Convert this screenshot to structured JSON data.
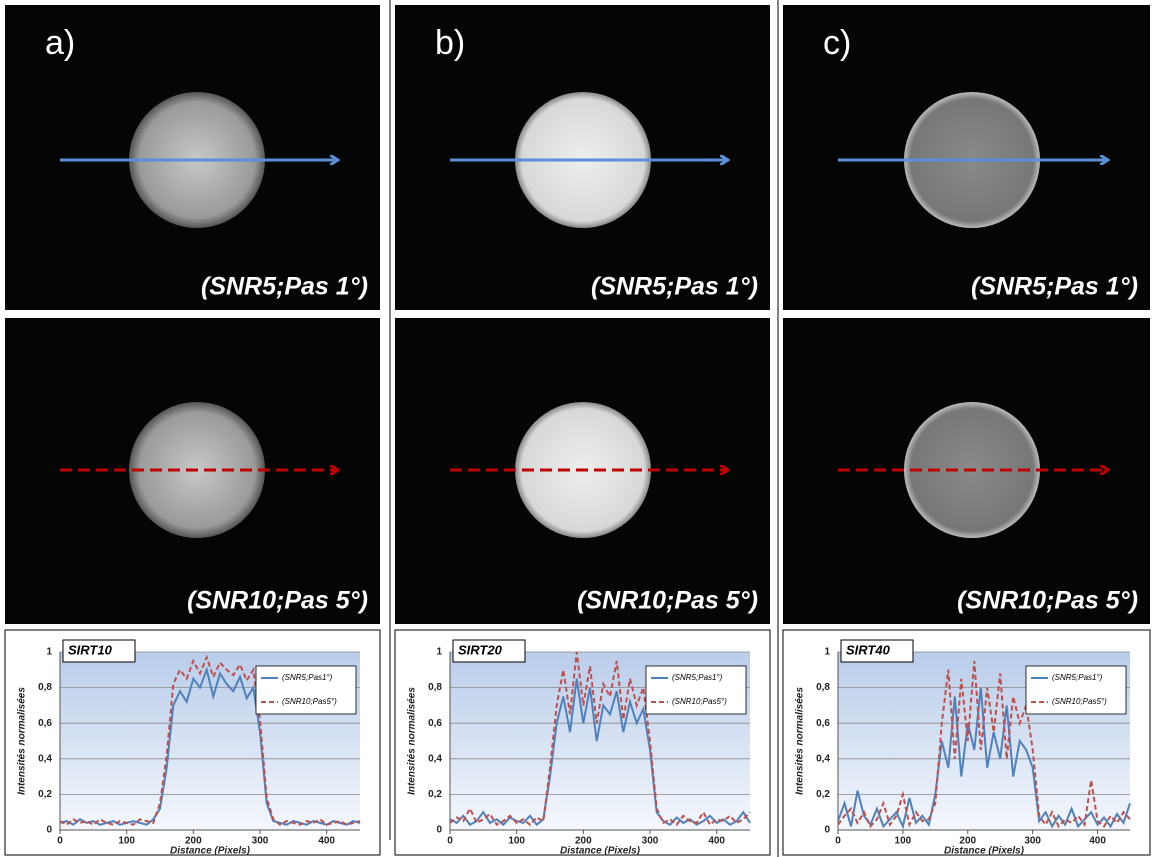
{
  "panels": [
    {
      "label": "a)",
      "captions": [
        "(SNR5;Pas 1°)",
        "(SNR10;Pas 5°)"
      ]
    },
    {
      "label": "b)",
      "captions": [
        "(SNR5;Pas 1°)",
        "(SNR10;Pas 5°)"
      ]
    },
    {
      "label": "c)",
      "captions": [
        "(SNR5;Pas 1°)",
        "(SNR10;Pas 5°)"
      ]
    }
  ],
  "chart_data": [
    {
      "type": "line",
      "title": "SIRT10",
      "xlabel": "Distance (Pixels)",
      "ylabel": "Intensités normalisées",
      "x": [
        0,
        10,
        20,
        30,
        40,
        50,
        60,
        70,
        80,
        90,
        100,
        110,
        120,
        130,
        140,
        150,
        160,
        170,
        180,
        190,
        200,
        210,
        220,
        230,
        240,
        250,
        260,
        270,
        280,
        290,
        300,
        310,
        320,
        330,
        340,
        350,
        360,
        370,
        380,
        390,
        400,
        410,
        420,
        430,
        440,
        450
      ],
      "xlim": [
        0,
        450
      ],
      "xticks": [
        0,
        100,
        200,
        300,
        400
      ],
      "ylim": [
        0,
        1
      ],
      "yticks": [
        0,
        {
          "value": 0.2,
          "label": "0,2"
        },
        {
          "value": 0.4,
          "label": "0,4"
        },
        {
          "value": 0.6,
          "label": "0,6"
        },
        {
          "value": 0.8,
          "label": "0,8"
        },
        1
      ],
      "grid": true,
      "legend": "top-right",
      "series": [
        {
          "name": "(SNR5;Pas1°)",
          "color": "#4f81bd",
          "style": "solid",
          "values": [
            0.04,
            0.05,
            0.03,
            0.06,
            0.04,
            0.05,
            0.03,
            0.04,
            0.05,
            0.03,
            0.04,
            0.05,
            0.04,
            0.03,
            0.06,
            0.12,
            0.35,
            0.7,
            0.78,
            0.72,
            0.85,
            0.8,
            0.9,
            0.75,
            0.88,
            0.82,
            0.78,
            0.86,
            0.74,
            0.8,
            0.55,
            0.15,
            0.05,
            0.04,
            0.03,
            0.05,
            0.04,
            0.03,
            0.05,
            0.04,
            0.03,
            0.05,
            0.04,
            0.03,
            0.05,
            0.04
          ]
        },
        {
          "name": "(SNR10;Pas5°)",
          "color": "#c0504d",
          "style": "dashed",
          "values": [
            0.05,
            0.03,
            0.06,
            0.04,
            0.05,
            0.03,
            0.06,
            0.04,
            0.03,
            0.05,
            0.04,
            0.03,
            0.06,
            0.05,
            0.04,
            0.15,
            0.42,
            0.82,
            0.9,
            0.85,
            0.95,
            0.88,
            0.97,
            0.86,
            0.94,
            0.9,
            0.87,
            0.93,
            0.84,
            0.9,
            0.62,
            0.18,
            0.06,
            0.03,
            0.05,
            0.04,
            0.03,
            0.05,
            0.04,
            0.06,
            0.03,
            0.04,
            0.05,
            0.03,
            0.04,
            0.05
          ]
        }
      ]
    },
    {
      "type": "line",
      "title": "SIRT20",
      "xlabel": "Distance (Pixels)",
      "ylabel": "Intensités normalisées",
      "x": [
        0,
        10,
        20,
        30,
        40,
        50,
        60,
        70,
        80,
        90,
        100,
        110,
        120,
        130,
        140,
        150,
        160,
        170,
        180,
        190,
        200,
        210,
        220,
        230,
        240,
        250,
        260,
        270,
        280,
        290,
        300,
        310,
        320,
        330,
        340,
        350,
        360,
        370,
        380,
        390,
        400,
        410,
        420,
        430,
        440,
        450
      ],
      "xlim": [
        0,
        450
      ],
      "xticks": [
        0,
        100,
        200,
        300,
        400
      ],
      "ylim": [
        0,
        1
      ],
      "yticks": [
        0,
        {
          "value": 0.2,
          "label": "0,2"
        },
        {
          "value": 0.4,
          "label": "0,4"
        },
        {
          "value": 0.6,
          "label": "0,6"
        },
        {
          "value": 0.8,
          "label": "0,8"
        },
        1
      ],
      "grid": true,
      "legend": "top-right",
      "series": [
        {
          "name": "(SNR5;Pas1°)",
          "color": "#4f81bd",
          "style": "solid",
          "values": [
            0.06,
            0.04,
            0.08,
            0.03,
            0.05,
            0.1,
            0.04,
            0.06,
            0.03,
            0.07,
            0.05,
            0.04,
            0.08,
            0.03,
            0.06,
            0.3,
            0.6,
            0.75,
            0.55,
            0.85,
            0.6,
            0.8,
            0.5,
            0.7,
            0.65,
            0.78,
            0.55,
            0.72,
            0.6,
            0.68,
            0.45,
            0.1,
            0.05,
            0.03,
            0.07,
            0.04,
            0.06,
            0.03,
            0.05,
            0.08,
            0.04,
            0.06,
            0.03,
            0.05,
            0.1,
            0.04
          ]
        },
        {
          "name": "(SNR10;Pas5°)",
          "color": "#c0504d",
          "style": "dashed",
          "values": [
            0.04,
            0.07,
            0.05,
            0.12,
            0.04,
            0.06,
            0.09,
            0.03,
            0.05,
            0.08,
            0.04,
            0.06,
            0.03,
            0.07,
            0.05,
            0.35,
            0.7,
            0.9,
            0.65,
            1,
            0.7,
            0.92,
            0.6,
            0.82,
            0.75,
            0.95,
            0.62,
            0.85,
            0.7,
            0.8,
            0.5,
            0.12,
            0.04,
            0.06,
            0.03,
            0.08,
            0.05,
            0.04,
            0.1,
            0.03,
            0.06,
            0.05,
            0.08,
            0.04,
            0.06,
            0.1
          ]
        }
      ]
    },
    {
      "type": "line",
      "title": "SIRT40",
      "xlabel": "Distance (Pixels)",
      "ylabel": "Intensités normalisées",
      "x": [
        0,
        10,
        20,
        30,
        40,
        50,
        60,
        70,
        80,
        90,
        100,
        110,
        120,
        130,
        140,
        150,
        160,
        170,
        180,
        190,
        200,
        210,
        220,
        230,
        240,
        250,
        260,
        270,
        280,
        290,
        300,
        310,
        320,
        330,
        340,
        350,
        360,
        370,
        380,
        390,
        400,
        410,
        420,
        430,
        440,
        450
      ],
      "xlim": [
        0,
        450
      ],
      "xticks": [
        0,
        100,
        200,
        300,
        400
      ],
      "ylim": [
        0,
        1
      ],
      "yticks": [
        0,
        {
          "value": 0.2,
          "label": "0,2"
        },
        {
          "value": 0.4,
          "label": "0,4"
        },
        {
          "value": 0.6,
          "label": "0,6"
        },
        {
          "value": 0.8,
          "label": "0,8"
        },
        1
      ],
      "grid": true,
      "legend": "top-right",
      "series": [
        {
          "name": "(SNR5;Pas1°)",
          "color": "#4f81bd",
          "style": "solid",
          "values": [
            0.05,
            0.15,
            0.02,
            0.22,
            0.08,
            0.03,
            0.12,
            0.02,
            0.06,
            0.1,
            0.02,
            0.18,
            0.04,
            0.08,
            0.03,
            0.2,
            0.5,
            0.35,
            0.75,
            0.3,
            0.6,
            0.45,
            0.8,
            0.35,
            0.55,
            0.4,
            0.7,
            0.3,
            0.5,
            0.45,
            0.35,
            0.05,
            0.1,
            0.02,
            0.08,
            0.03,
            0.12,
            0.02,
            0.06,
            0.1,
            0.03,
            0.07,
            0.02,
            0.09,
            0.04,
            0.15
          ]
        },
        {
          "name": "(SNR10;Pas5°)",
          "color": "#c0504d",
          "style": "dashed",
          "values": [
            0.03,
            0.08,
            0.12,
            0.04,
            0.1,
            0.02,
            0.06,
            0.15,
            0.03,
            0.08,
            0.2,
            0.03,
            0.1,
            0.05,
            0.06,
            0.15,
            0.6,
            0.9,
            0.4,
            0.85,
            0.5,
            0.95,
            0.45,
            0.8,
            0.55,
            0.88,
            0.4,
            0.75,
            0.6,
            0.7,
            0.45,
            0.08,
            0.03,
            0.1,
            0.02,
            0.06,
            0.04,
            0.08,
            0.03,
            0.28,
            0.05,
            0.02,
            0.08,
            0.04,
            0.1,
            0.06
          ]
        }
      ]
    }
  ]
}
